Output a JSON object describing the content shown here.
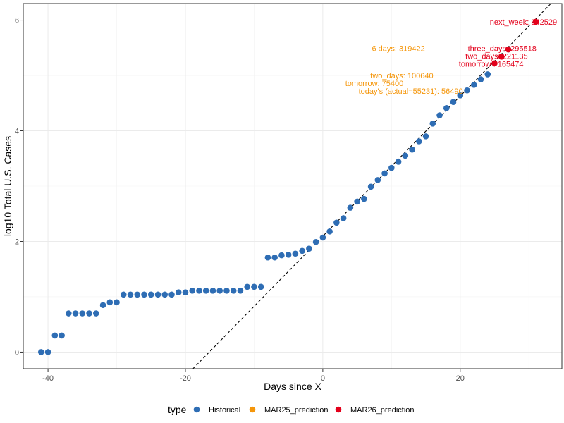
{
  "chart_data": {
    "type": "scatter",
    "xlabel": "Days since X",
    "ylabel": "log10 Total U.S. Cases",
    "xlim": [
      -43.6,
      34.8
    ],
    "ylim": [
      -0.3,
      6.3
    ],
    "x_ticks": [
      -40,
      -20,
      0,
      20
    ],
    "y_ticks": [
      0,
      2,
      4,
      6
    ],
    "grid": true,
    "legend_position": "bottom",
    "legend_title": "type",
    "colors": {
      "Historical": "#2e6db4",
      "MAR25_prediction": "#f5960a",
      "MAR26_prediction": "#e3001b",
      "trend_line": "#000000"
    },
    "series": [
      {
        "name": "Historical",
        "points": [
          [
            -41,
            0
          ],
          [
            -40,
            0
          ],
          [
            -39,
            0.3
          ],
          [
            -38,
            0.3
          ],
          [
            -37,
            0.7
          ],
          [
            -36,
            0.7
          ],
          [
            -35,
            0.7
          ],
          [
            -34,
            0.7
          ],
          [
            -33,
            0.7
          ],
          [
            -32,
            0.85
          ],
          [
            -31,
            0.9
          ],
          [
            -30,
            0.9
          ],
          [
            -29,
            1.04
          ],
          [
            -28,
            1.04
          ],
          [
            -27,
            1.04
          ],
          [
            -26,
            1.04
          ],
          [
            -25,
            1.04
          ],
          [
            -24,
            1.04
          ],
          [
            -23,
            1.04
          ],
          [
            -22,
            1.04
          ],
          [
            -21,
            1.08
          ],
          [
            -20,
            1.08
          ],
          [
            -19,
            1.11
          ],
          [
            -18,
            1.11
          ],
          [
            -17,
            1.11
          ],
          [
            -16,
            1.11
          ],
          [
            -15,
            1.11
          ],
          [
            -14,
            1.11
          ],
          [
            -13,
            1.11
          ],
          [
            -12,
            1.11
          ],
          [
            -11,
            1.18
          ],
          [
            -10,
            1.18
          ],
          [
            -9,
            1.18
          ],
          [
            -8,
            1.71
          ],
          [
            -7,
            1.71
          ],
          [
            -6,
            1.75
          ],
          [
            -5,
            1.76
          ],
          [
            -4,
            1.78
          ],
          [
            -3,
            1.83
          ],
          [
            -2,
            1.87
          ],
          [
            -1,
            1.99
          ],
          [
            0,
            2.07
          ],
          [
            1,
            2.18
          ],
          [
            2,
            2.34
          ],
          [
            3,
            2.42
          ],
          [
            4,
            2.61
          ],
          [
            5,
            2.72
          ],
          [
            6,
            2.77
          ],
          [
            7,
            2.99
          ],
          [
            8,
            3.11
          ],
          [
            9,
            3.23
          ],
          [
            10,
            3.33
          ],
          [
            11,
            3.44
          ],
          [
            12,
            3.55
          ],
          [
            13,
            3.66
          ],
          [
            14,
            3.81
          ],
          [
            15,
            3.9
          ],
          [
            16,
            4.13
          ],
          [
            17,
            4.28
          ],
          [
            18,
            4.41
          ],
          [
            19,
            4.52
          ],
          [
            20,
            4.64
          ],
          [
            21,
            4.73
          ],
          [
            22,
            4.83
          ],
          [
            23,
            4.93
          ],
          [
            24,
            5.02
          ]
        ]
      },
      {
        "name": "MAR25_prediction",
        "points": [],
        "annotations": [
          {
            "text": "6 days: 319422",
            "x": 11,
            "y": 5.49
          },
          {
            "text": "two_days: 100640",
            "x": 11.5,
            "y": 5.0
          },
          {
            "text": "tomorrow: 75400",
            "x": 7.5,
            "y": 4.86
          },
          {
            "text": "today's (actual=55231): 56490",
            "x": 12.8,
            "y": 4.72
          }
        ]
      },
      {
        "name": "MAR26_prediction",
        "points": [
          [
            25,
            5.22
          ],
          [
            26,
            5.34
          ],
          [
            27,
            5.47
          ],
          [
            31,
            5.97
          ]
        ],
        "annotations": [
          {
            "text": "next_week: 942529",
            "x": 29.2,
            "y": 5.97
          },
          {
            "text": "three_days: 295518",
            "x": 26.1,
            "y": 5.49
          },
          {
            "text": "two_days: 221135",
            "x": 25.3,
            "y": 5.35
          },
          {
            "text": "tomorrow : 165474",
            "x": 24.5,
            "y": 5.21
          }
        ]
      }
    ],
    "trend_line": {
      "x": [
        -18.9,
        33.2
      ],
      "y": [
        -0.3,
        6.3
      ],
      "style": "dashed"
    }
  }
}
